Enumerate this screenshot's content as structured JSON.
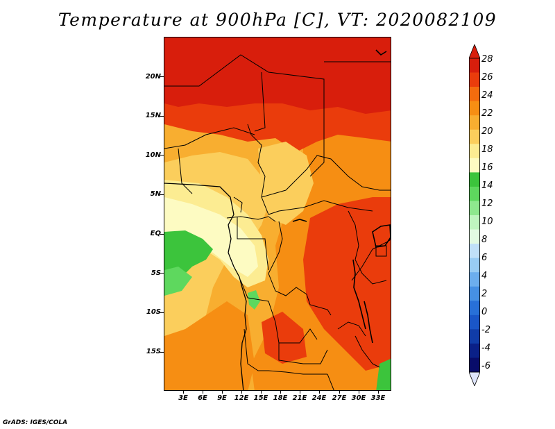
{
  "title": "Temperature at 900hPa [C], VT: 2020082109",
  "footer": "GrADS: IGES/COLA",
  "lat_labels": [
    "20N",
    "15N",
    "10N",
    "5N",
    "EQ",
    "5S",
    "10S",
    "15S"
  ],
  "lon_labels": [
    "3E",
    "6E",
    "9E",
    "12E",
    "15E",
    "18E",
    "21E",
    "24E",
    "27E",
    "30E",
    "33E"
  ],
  "colorbar": {
    "labels": [
      "28",
      "26",
      "24",
      "22",
      "20",
      "18",
      "16",
      "14",
      "12",
      "10",
      "8",
      "6",
      "4",
      "2",
      "0",
      "-2",
      "-4",
      "-6"
    ],
    "colors_top_to_bottom": [
      "#d81e0c",
      "#ea3c0c",
      "#f46c0e",
      "#f68e13",
      "#f8ae30",
      "#fbce5c",
      "#fcec92",
      "#fdfbc2",
      "#3cc43c",
      "#5ed85e",
      "#8ee88e",
      "#bff5bf",
      "#e2fae2",
      "#c0e0f8",
      "#98ccf4",
      "#6caeee",
      "#4690e4",
      "#2870d8",
      "#1a56c8",
      "#103ca8",
      "#0a2088",
      "#080c6a"
    ],
    "arrow_top": "#d81e0c",
    "arrow_bottom": "#dde4fb"
  },
  "palette": {
    "deep_red": "#d81e0c",
    "red_orange": "#ea3c0c",
    "orange": "#f46c0e",
    "light_orange": "#f68e13",
    "amber": "#f8ae30",
    "yellow": "#fbce5c",
    "pale_yellow": "#fcec92",
    "cream": "#fdfbc2",
    "green": "#3cc43c",
    "light_green": "#5ed85e",
    "border": "#000000"
  }
}
